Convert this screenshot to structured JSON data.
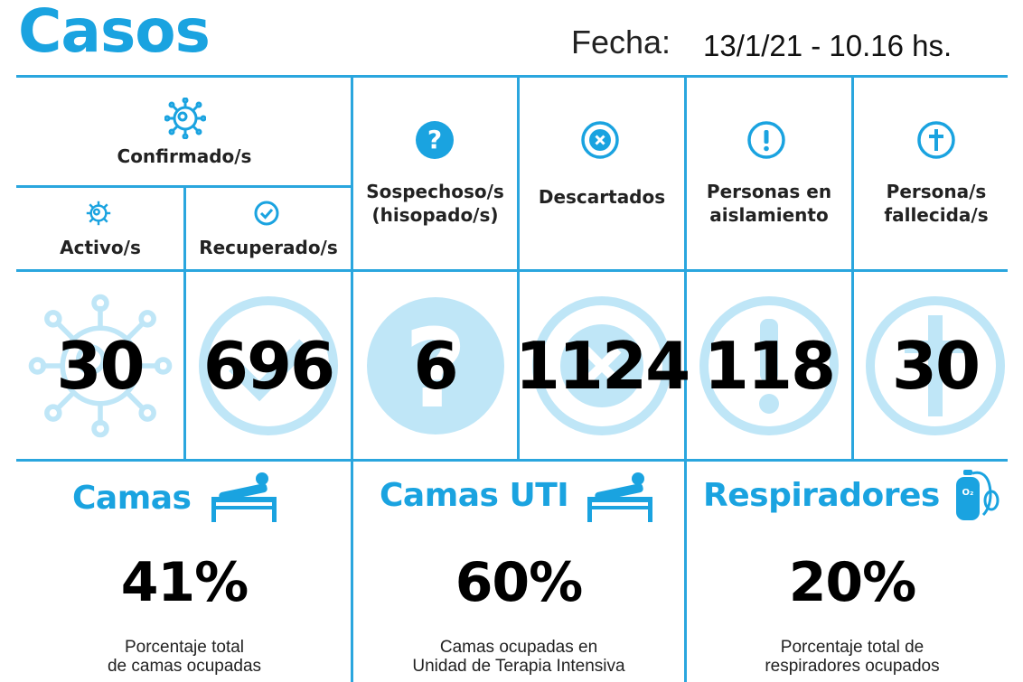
{
  "header": {
    "title": "Casos",
    "fecha_label": "Fecha:",
    "fecha_value": "13/1/21 - 10.16 hs."
  },
  "columns": {
    "confirmado": {
      "label": "Confirmado/s",
      "icon": "virus-icon"
    },
    "activo": {
      "label": "Activo/s",
      "value": "30",
      "icon": "virus-icon"
    },
    "recuperado": {
      "label": "Recuperado/s",
      "value": "696",
      "icon": "check-circle-icon"
    },
    "sospechoso": {
      "label_line1": "Sospechoso/s",
      "label_line2": "(hisopado/s)",
      "value": "6",
      "icon": "question-circle-icon"
    },
    "descartados": {
      "label": "Descartados",
      "value": "1124",
      "icon": "x-circle-icon"
    },
    "aislamiento": {
      "label_line1": "Personas en",
      "label_line2": "aislamiento",
      "value": "118",
      "icon": "exclamation-circle-icon"
    },
    "fallecida": {
      "label_line1": "Persona/s",
      "label_line2": "fallecida/s",
      "value": "30",
      "icon": "cross-circle-icon"
    }
  },
  "bottom": {
    "camas": {
      "title": "Camas",
      "percent": "41%",
      "desc_line1": "Porcentaje total",
      "desc_line2": "de camas ocupadas",
      "icon": "hospital-bed-icon"
    },
    "camas_uti": {
      "title": "Camas UTI",
      "percent": "60%",
      "desc_line1": "Camas ocupadas en",
      "desc_line2": "Unidad de Terapia Intensiva",
      "icon": "hospital-bed-icon"
    },
    "respiradores": {
      "title": "Respiradores",
      "percent": "20%",
      "desc_line1": "Porcentaje total de",
      "desc_line2": "respiradores ocupados",
      "icon": "oxygen-tank-icon"
    }
  },
  "colors": {
    "accent": "#1aa3e0",
    "light": "#bfe6f7",
    "line": "#2aa6de"
  }
}
